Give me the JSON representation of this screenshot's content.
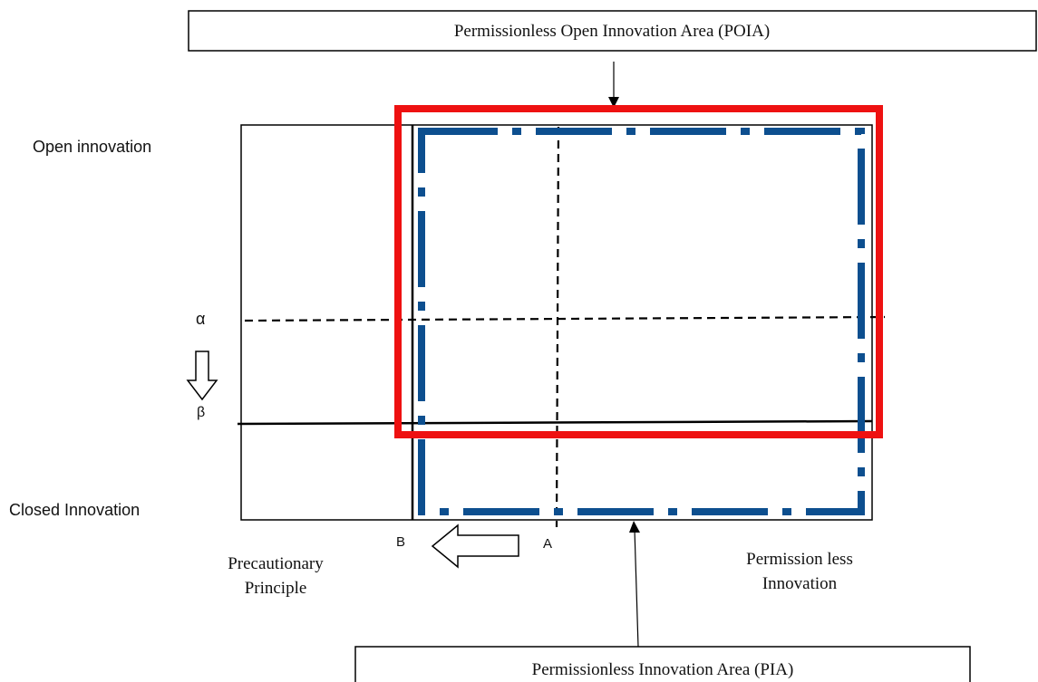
{
  "top_label_box": "Permissionless Open Innovation Area (POIA)",
  "bottom_label_box": "Permissionless Innovation Area (PIA)",
  "axis_top_label": "Open innovation",
  "axis_bottom_label": "Closed Innovation",
  "alpha_label": "α",
  "beta_label": "β",
  "b_label": "B",
  "a_label": "A",
  "precautionary_line1": "Precautionary",
  "precautionary_line2": "Principle",
  "permissionless_line1": "Permission less",
  "permissionless_line2": "Innovation",
  "colors": {
    "poia_frame": "#ee1111",
    "pia_frame": "#0d4f8f",
    "lines": "#000000"
  }
}
